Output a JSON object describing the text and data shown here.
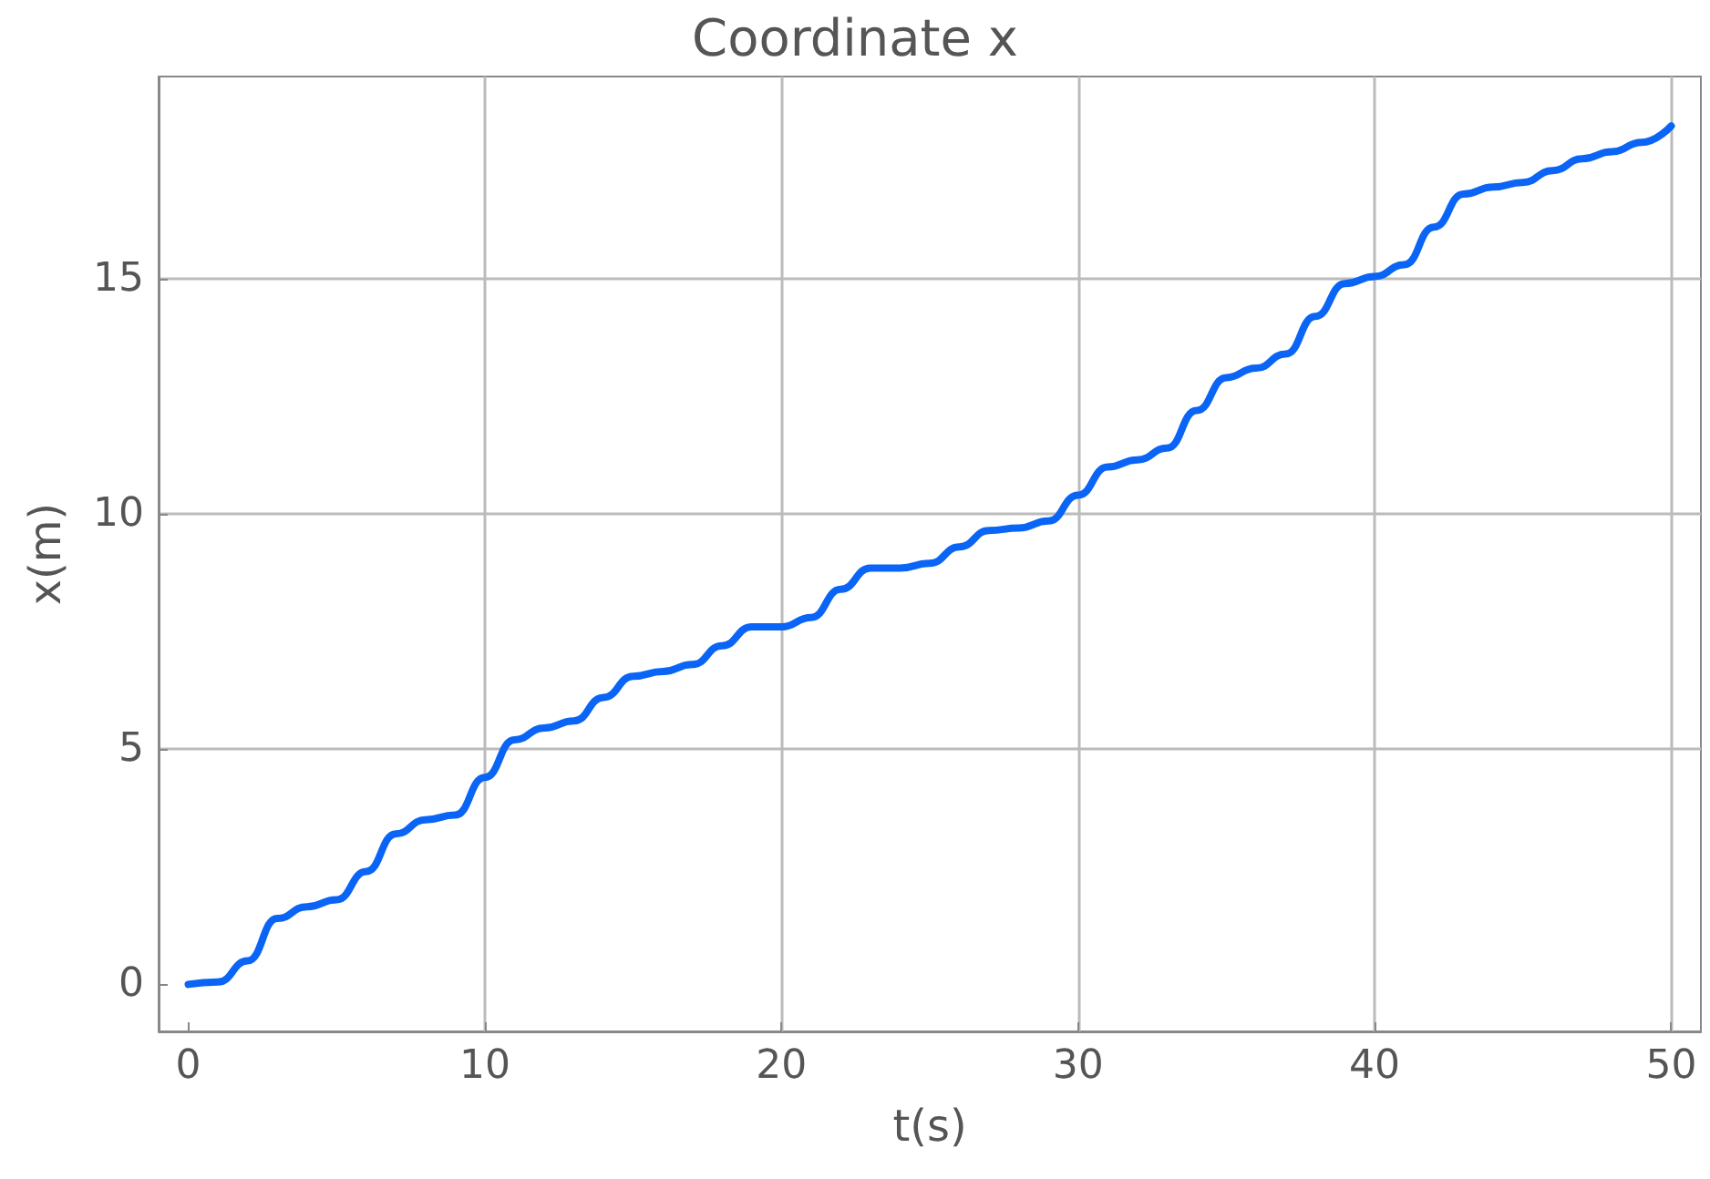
{
  "chart_data": {
    "type": "line",
    "title": "Coordinate x",
    "xlabel": "t(s)",
    "ylabel": "x(m)",
    "x": [
      0,
      1,
      2,
      3,
      4,
      5,
      6,
      7,
      8,
      9,
      10,
      11,
      12,
      13,
      14,
      15,
      16,
      17,
      18,
      19,
      20,
      21,
      22,
      23,
      24,
      25,
      26,
      27,
      28,
      29,
      30,
      31,
      32,
      33,
      34,
      35,
      36,
      37,
      38,
      39,
      40,
      41,
      42,
      43,
      44,
      45,
      46,
      47,
      48,
      49,
      50
    ],
    "series": [
      {
        "color": "#0a64f5",
        "values": [
          0,
          0.05,
          0.5,
          1.4,
          1.65,
          1.8,
          2.4,
          3.2,
          3.5,
          3.6,
          4.4,
          5.2,
          5.45,
          5.6,
          6.1,
          6.55,
          6.65,
          6.8,
          7.2,
          7.6,
          7.6,
          7.8,
          8.4,
          8.85,
          8.85,
          8.95,
          9.3,
          9.65,
          9.7,
          9.85,
          10.4,
          11,
          11.15,
          11.4,
          12.2,
          12.9,
          13.1,
          13.4,
          14.2,
          14.9,
          15.05,
          15.3,
          16.1,
          16.8,
          16.95,
          17.05,
          17.3,
          17.55,
          17.7,
          17.9,
          18.25
        ]
      }
    ],
    "xlim": [
      -1,
      51
    ],
    "xticks": [
      0,
      10,
      20,
      30,
      40,
      50
    ],
    "ylim": [
      -1,
      19.3
    ],
    "yticks": [
      0,
      5,
      10,
      15
    ],
    "grid": true,
    "marker": "none",
    "line_style": "solid"
  }
}
